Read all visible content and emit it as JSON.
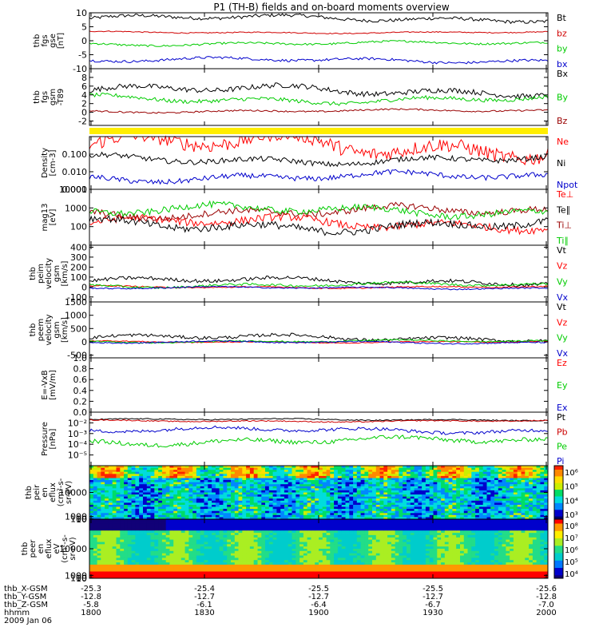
{
  "title": "P1 (TH-B) fields and on-board moments overview",
  "chart_data": [
    {
      "type": "line",
      "ylabel": [
        "thb",
        "fgs",
        "gse",
        "[nT]"
      ],
      "ylim": [
        -10,
        10
      ],
      "yticks": [
        "10",
        "5",
        "0",
        "-5",
        "-10"
      ],
      "yticks_values": [
        10,
        5,
        0,
        -5,
        -10
      ],
      "series": [
        {
          "name": "Bt",
          "color": "#000000",
          "base": 8,
          "amp": 2.0
        },
        {
          "name": "bz",
          "color": "#d00000",
          "base": 3,
          "amp": 0.6
        },
        {
          "name": "by",
          "color": "#00cc00",
          "base": -1,
          "amp": 1.2
        },
        {
          "name": "bx",
          "color": "#0000cc",
          "base": -7,
          "amp": 1.5
        }
      ]
    },
    {
      "type": "line",
      "ylabel": [
        "thb",
        "fgs",
        "gsm",
        "-T89"
      ],
      "ylim": [
        -3,
        10
      ],
      "yticks": [
        "8",
        "6",
        "4",
        "2",
        "0",
        "-2"
      ],
      "yticks_values": [
        8,
        6,
        4,
        2,
        0,
        -2
      ],
      "series": [
        {
          "name": "Bx",
          "color": "#000000",
          "base": 5,
          "amp": 2.0
        },
        {
          "name": "By",
          "color": "#00cc00",
          "base": 3,
          "amp": 1.5
        },
        {
          "name": "Bz",
          "color": "#990000",
          "base": 0.3,
          "amp": 0.6
        }
      ]
    },
    {
      "type": "line",
      "scale": "log",
      "ylabel": [
        "Density",
        "[cm-3]"
      ],
      "ylim": [
        0.001,
        1
      ],
      "yticks": [
        "0.100",
        "0.010",
        "0.001"
      ],
      "yticks_values": [
        0.1,
        0.01,
        0.001
      ],
      "series": [
        {
          "name": "Ne",
          "color": "#ff0000",
          "base": 0.3,
          "amp": 0.8
        },
        {
          "name": "Ni",
          "color": "#000000",
          "base": 0.05,
          "amp": 0.3
        },
        {
          "name": "Npot",
          "color": "#0000cc",
          "base": 0.005,
          "amp": 0.3
        }
      ]
    },
    {
      "type": "line",
      "scale": "log",
      "ylabel": [
        "mag13",
        "[eV]"
      ],
      "ylim": [
        10,
        10000
      ],
      "yticks": [
        "10000",
        "1000",
        "100"
      ],
      "yticks_values": [
        10000,
        1000,
        100
      ],
      "series": [
        {
          "name": "Te⊥",
          "color": "#ff0000",
          "base": 150,
          "amp": 0.4
        },
        {
          "name": "Te∥",
          "color": "#000000",
          "base": 120,
          "amp": 0.4
        },
        {
          "name": "Ti⊥",
          "color": "#990000",
          "base": 600,
          "amp": 0.35
        },
        {
          "name": "Ti∥",
          "color": "#00cc00",
          "base": 700,
          "amp": 0.35
        }
      ]
    },
    {
      "type": "line",
      "ylabel": [
        "thb",
        "peim",
        "velocity",
        "gsm",
        "[km/s]"
      ],
      "ylim": [
        -150,
        420
      ],
      "yticks": [
        "400",
        "300",
        "200",
        "100",
        "0",
        "-100"
      ],
      "yticks_values": [
        400,
        300,
        200,
        100,
        0,
        -100
      ],
      "series": [
        {
          "name": "Vt",
          "color": "#000000",
          "base": 60,
          "amp": 60
        },
        {
          "name": "Vz",
          "color": "#ff0000",
          "base": 0,
          "amp": 20
        },
        {
          "name": "Vy",
          "color": "#00cc00",
          "base": 20,
          "amp": 40
        },
        {
          "name": "Vx",
          "color": "#0000cc",
          "base": -10,
          "amp": 20
        }
      ]
    },
    {
      "type": "line",
      "ylabel": [
        "thb",
        "peem",
        "velocity",
        "gsm",
        "[km/s]"
      ],
      "ylim": [
        -600,
        1500
      ],
      "yticks": [
        "1500",
        "1000",
        "500",
        "0",
        "-500"
      ],
      "yticks_values": [
        1500,
        1000,
        500,
        0,
        -500
      ],
      "series": [
        {
          "name": "Vt",
          "color": "#000000",
          "base": 150,
          "amp": 200
        },
        {
          "name": "Vz",
          "color": "#ff0000",
          "base": 0,
          "amp": 60
        },
        {
          "name": "Vy",
          "color": "#00cc00",
          "base": 20,
          "amp": 80
        },
        {
          "name": "Vx",
          "color": "#0000cc",
          "base": -20,
          "amp": 80
        }
      ]
    },
    {
      "type": "line",
      "ylabel": [
        "E=-VxB",
        "[mV/m]"
      ],
      "ylim": [
        0,
        1
      ],
      "yticks": [
        "1.0",
        "0.8",
        "0.6",
        "0.4",
        "0.2",
        "0.0"
      ],
      "yticks_values": [
        1.0,
        0.8,
        0.6,
        0.4,
        0.2,
        0.0
      ],
      "series": [
        {
          "name": "Ez",
          "color": "#ff0000"
        },
        {
          "name": "Ey",
          "color": "#00cc00"
        },
        {
          "name": "Ex",
          "color": "#0000cc"
        }
      ]
    },
    {
      "type": "line",
      "scale": "log",
      "ylabel": [
        "Pressure",
        "[nPa]"
      ],
      "ylim": [
        1e-06,
        0.1
      ],
      "yticks": [
        "10⁻²",
        "10⁻³",
        "10⁻⁴",
        "10⁻⁵"
      ],
      "yticks_values": [
        0.01,
        0.001,
        0.0001,
        1e-05
      ],
      "series": [
        {
          "name": "Pt",
          "color": "#000000",
          "base": 0.02,
          "amp": 0.1
        },
        {
          "name": "Pb",
          "color": "#cc0000",
          "base": 0.015,
          "amp": 0.1
        },
        {
          "name": "Pe",
          "color": "#00cc00",
          "base": 0.0002,
          "amp": 0.4
        },
        {
          "name": "Pi",
          "color": "#0000cc",
          "base": 0.002,
          "amp": 0.3
        }
      ]
    },
    {
      "type": "heatmap",
      "ylabel": [
        "thb",
        "peir",
        "en",
        "eflux",
        "(cm²-s-",
        "sr-eV)"
      ],
      "ylim": [
        10,
        20000
      ],
      "yticks": [
        "10000",
        "1000",
        "100",
        "10"
      ],
      "yticks_values": [
        10000,
        1000,
        100,
        10
      ],
      "colorbar": [
        "10⁶",
        "10⁵",
        "10⁴",
        "10³"
      ],
      "colorbar_values": [
        6,
        5,
        4,
        3
      ]
    },
    {
      "type": "heatmap",
      "ylabel": [
        "thb",
        "peer",
        "en",
        "eflux",
        "eV",
        "(cm²-s-",
        "sr-eV)"
      ],
      "ylim": [
        10,
        20000
      ],
      "yticks": [
        "10000",
        "1000",
        "100",
        "10"
      ],
      "yticks_values": [
        10000,
        1000,
        100,
        10
      ],
      "colorbar": [
        "10⁸",
        "10⁷",
        "10⁶",
        "10⁵",
        "10⁴"
      ],
      "colorbar_values": [
        8,
        7,
        6,
        5,
        4
      ]
    }
  ],
  "xaxis": {
    "row_labels": [
      "thb_X-GSM",
      "thb_Y-GSM",
      "thb_Z-GSM",
      "hhmm"
    ],
    "columns": [
      [
        "-25.3",
        "-12.8",
        "-5.8",
        "1800"
      ],
      [
        "-25.4",
        "-12.7",
        "-6.1",
        "1830"
      ],
      [
        "-25.5",
        "-12.7",
        "-6.4",
        "1900"
      ],
      [
        "-25.5",
        "-12.7",
        "-6.7",
        "1930"
      ],
      [
        "-25.6",
        "-12.8",
        "-7.0",
        "2000"
      ]
    ],
    "date": "2009 Jan 06"
  },
  "colors": {
    "axis": "#000000",
    "bar": "#ffee00"
  }
}
